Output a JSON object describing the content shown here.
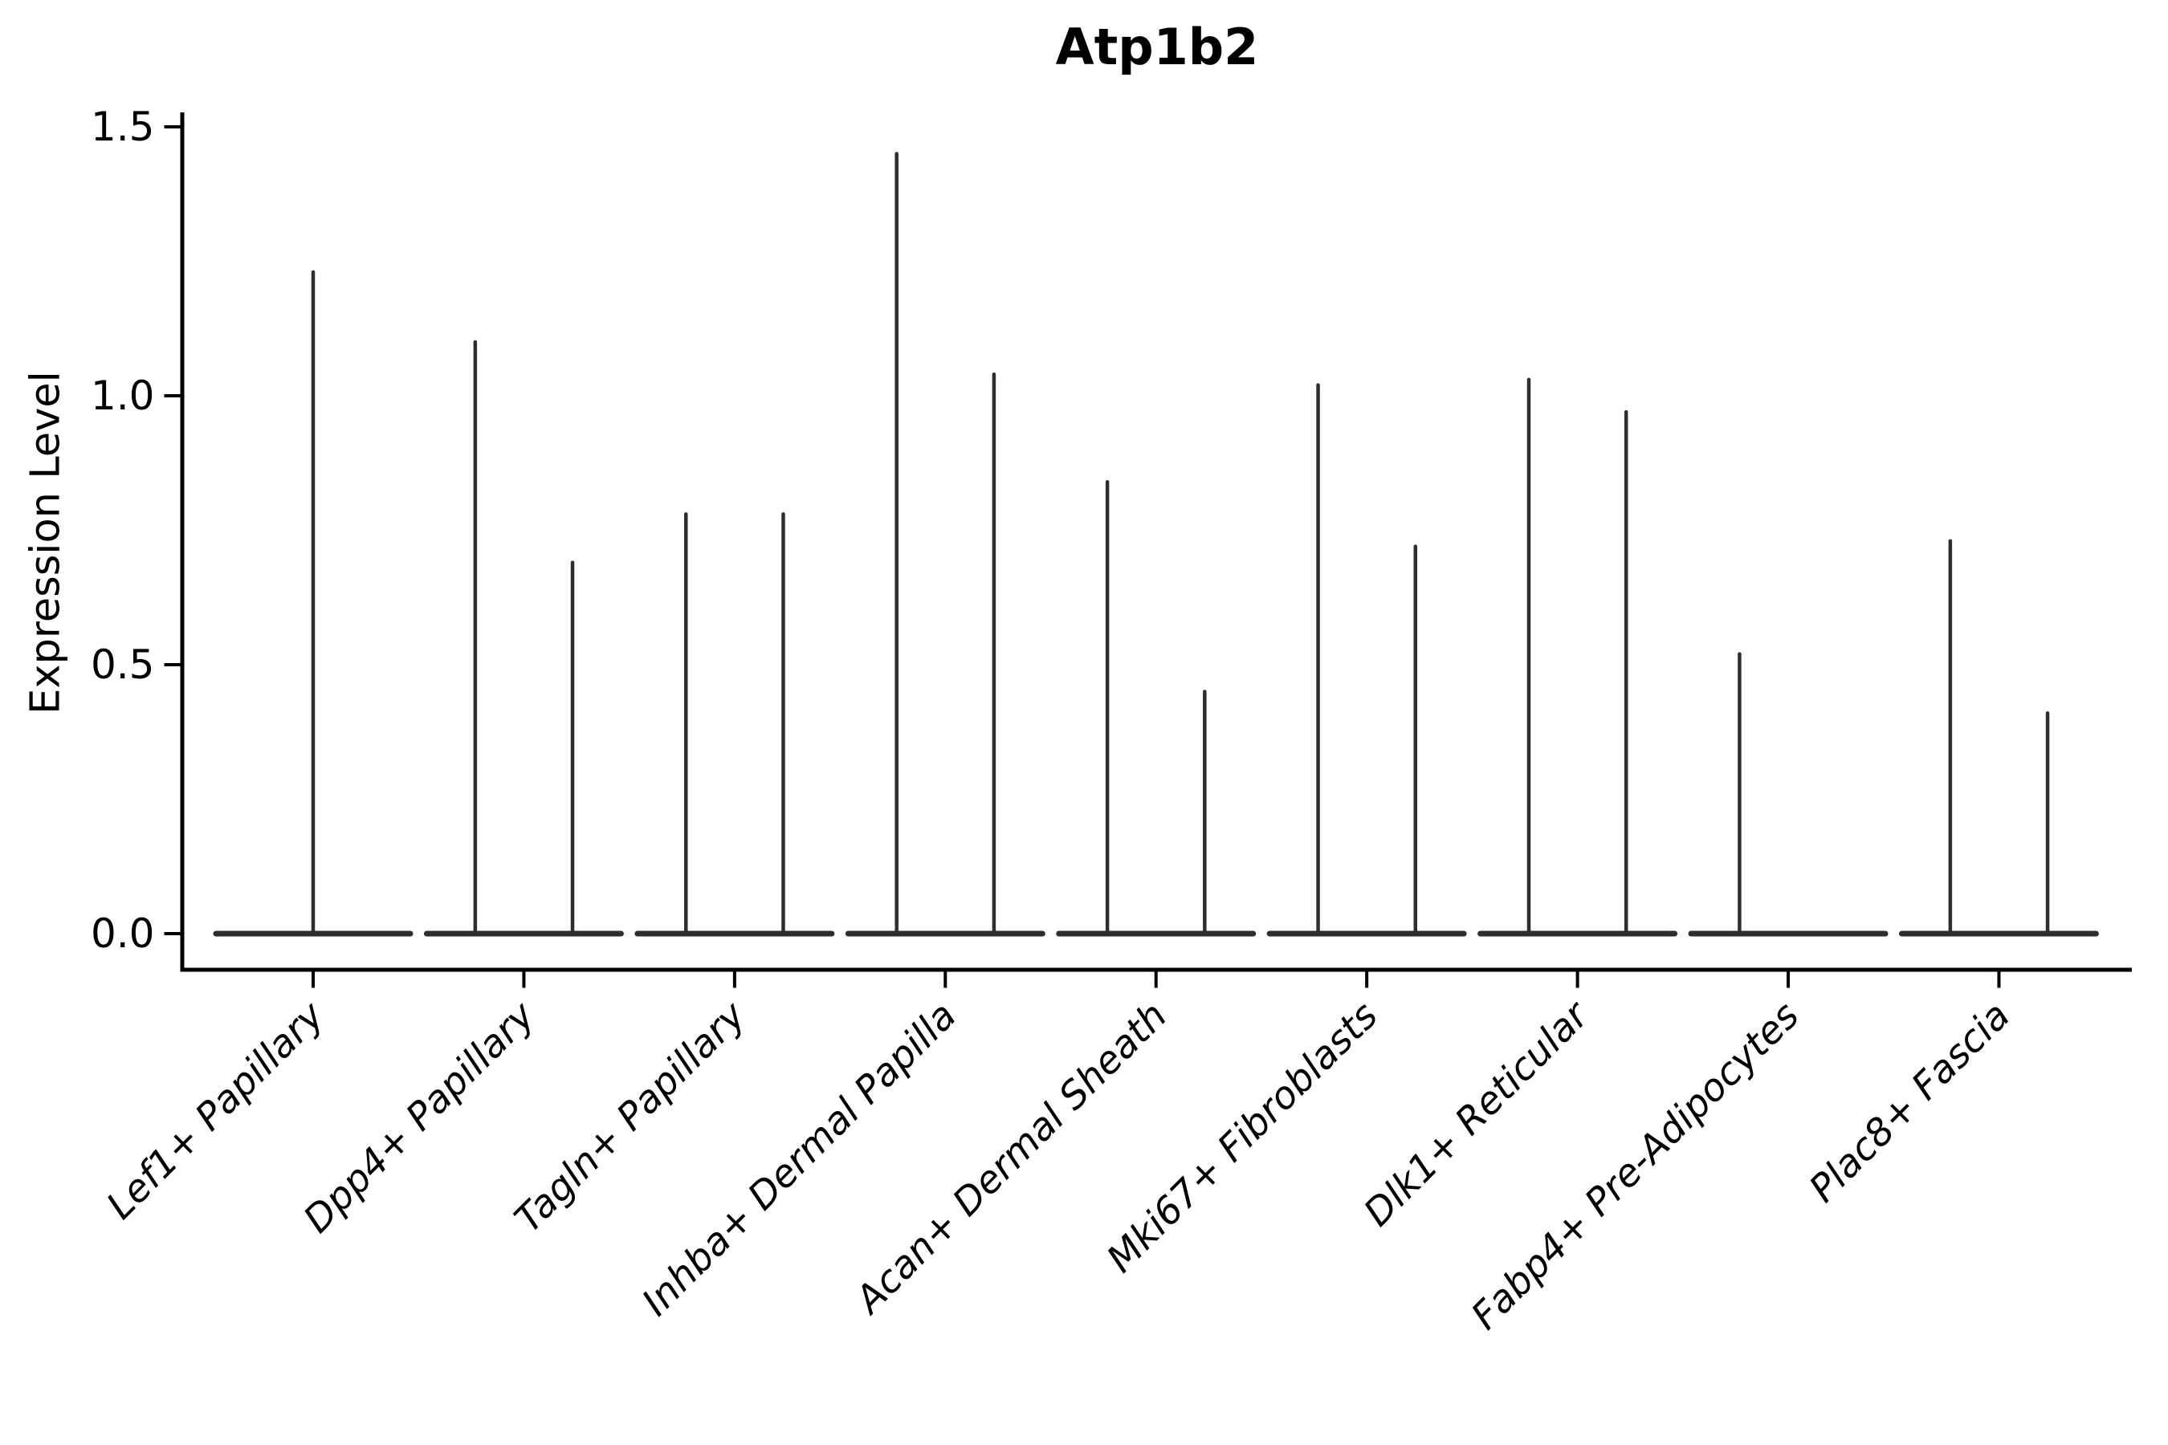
{
  "chart_data": {
    "type": "violin",
    "title": "Atp1b2",
    "xlabel": "",
    "ylabel": "Expression Level",
    "ylim": [
      0,
      1.5
    ],
    "yticks": [
      {
        "value": 0.0,
        "label": "0.0"
      },
      {
        "value": 0.5,
        "label": "0.5"
      },
      {
        "value": 1.0,
        "label": "1.0"
      },
      {
        "value": 1.5,
        "label": "1.5"
      }
    ],
    "grid": false,
    "legend": "none",
    "categories": [
      "Lef1+ Papillary",
      "Dpp4+ Papillary",
      "Tagln+ Papillary",
      "Inhba+ Dermal Papilla",
      "Acan+ Dermal Sheath",
      "Mki67+ Fibroblasts",
      "Dlk1+ Reticular",
      "Fabp4+ Pre-Adipocytes",
      "Plac8+ Fascia"
    ],
    "series": [
      {
        "category": "Lef1+ Papillary",
        "violins": [
          {
            "slot": "full",
            "min": 0,
            "max": 1.23
          }
        ]
      },
      {
        "category": "Dpp4+ Papillary",
        "violins": [
          {
            "slot": "left",
            "min": 0,
            "max": 1.1
          },
          {
            "slot": "right",
            "min": 0,
            "max": 0.69
          }
        ]
      },
      {
        "category": "Tagln+ Papillary",
        "violins": [
          {
            "slot": "left",
            "min": 0,
            "max": 0.78
          },
          {
            "slot": "right",
            "min": 0,
            "max": 0.78
          }
        ]
      },
      {
        "category": "Inhba+ Dermal Papilla",
        "violins": [
          {
            "slot": "left",
            "min": 0,
            "max": 1.45
          },
          {
            "slot": "right",
            "min": 0,
            "max": 1.04
          }
        ]
      },
      {
        "category": "Acan+ Dermal Sheath",
        "violins": [
          {
            "slot": "left",
            "min": 0,
            "max": 0.84
          },
          {
            "slot": "right",
            "min": 0,
            "max": 0.45
          }
        ]
      },
      {
        "category": "Mki67+ Fibroblasts",
        "violins": [
          {
            "slot": "left",
            "min": 0,
            "max": 1.02
          },
          {
            "slot": "right",
            "min": 0,
            "max": 0.72
          }
        ]
      },
      {
        "category": "Dlk1+ Reticular",
        "violins": [
          {
            "slot": "left",
            "min": 0,
            "max": 1.03
          },
          {
            "slot": "right",
            "min": 0,
            "max": 0.97
          }
        ]
      },
      {
        "category": "Fabp4+ Pre-Adipocytes",
        "violins": [
          {
            "slot": "left",
            "min": 0,
            "max": 0.52
          }
        ]
      },
      {
        "category": "Plac8+ Fascia",
        "violins": [
          {
            "slot": "left",
            "min": 0,
            "max": 0.73
          },
          {
            "slot": "right",
            "min": 0,
            "max": 0.41
          }
        ]
      }
    ],
    "colors": {
      "violin_line": "#2e2e2e",
      "axis": "#000000",
      "text": "#000000",
      "background": "#ffffff"
    }
  }
}
